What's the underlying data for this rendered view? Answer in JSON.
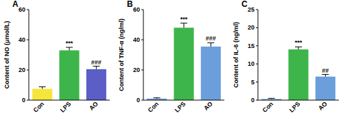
{
  "chart_data": [
    {
      "type": "bar",
      "title": "A",
      "y_label": "Content of NO (μmol/L)",
      "categories": [
        "Con",
        "LPS",
        "AO"
      ],
      "values": [
        7.5,
        33,
        20.5
      ],
      "errors": [
        1.3,
        2,
        2
      ],
      "colors": [
        "#f5e63c",
        "#3db54a",
        "#5a5ec6"
      ],
      "ylim": [
        0,
        60
      ],
      "yticks": [
        0,
        20,
        40,
        60
      ],
      "grid": false,
      "annotations": [
        {
          "text": "***",
          "x": "LPS"
        },
        {
          "text": "###",
          "x": "AO"
        }
      ]
    },
    {
      "type": "bar",
      "title": "B",
      "y_label": "Content of TNF-α (ng/ml)",
      "categories": [
        "Con",
        "LPS",
        "AO"
      ],
      "values": [
        1,
        48,
        35.5
      ],
      "errors": [
        0.5,
        3,
        2.5
      ],
      "colors": [
        "#6a9fdc",
        "#3db54a",
        "#6a9fdc"
      ],
      "ylim": [
        0,
        60
      ],
      "yticks": [
        0,
        20,
        40,
        60
      ],
      "grid": false,
      "annotations": [
        {
          "text": "***",
          "x": "LPS"
        },
        {
          "text": "###",
          "x": "AO"
        }
      ]
    },
    {
      "type": "bar",
      "title": "C",
      "y_label": "Content of IL-6 (ng/ml)",
      "categories": [
        "Con",
        "LPS",
        "AO"
      ],
      "values": [
        0.3,
        14,
        6.5
      ],
      "errors": [
        0.2,
        0.7,
        0.6
      ],
      "colors": [
        "#6a9fdc",
        "#3db54a",
        "#6a9fdc"
      ],
      "ylim": [
        0,
        25
      ],
      "yticks": [
        0,
        5,
        10,
        15,
        20,
        25
      ],
      "grid": false,
      "annotations": [
        {
          "text": "***",
          "x": "LPS"
        },
        {
          "text": "##",
          "x": "AO"
        }
      ]
    }
  ]
}
